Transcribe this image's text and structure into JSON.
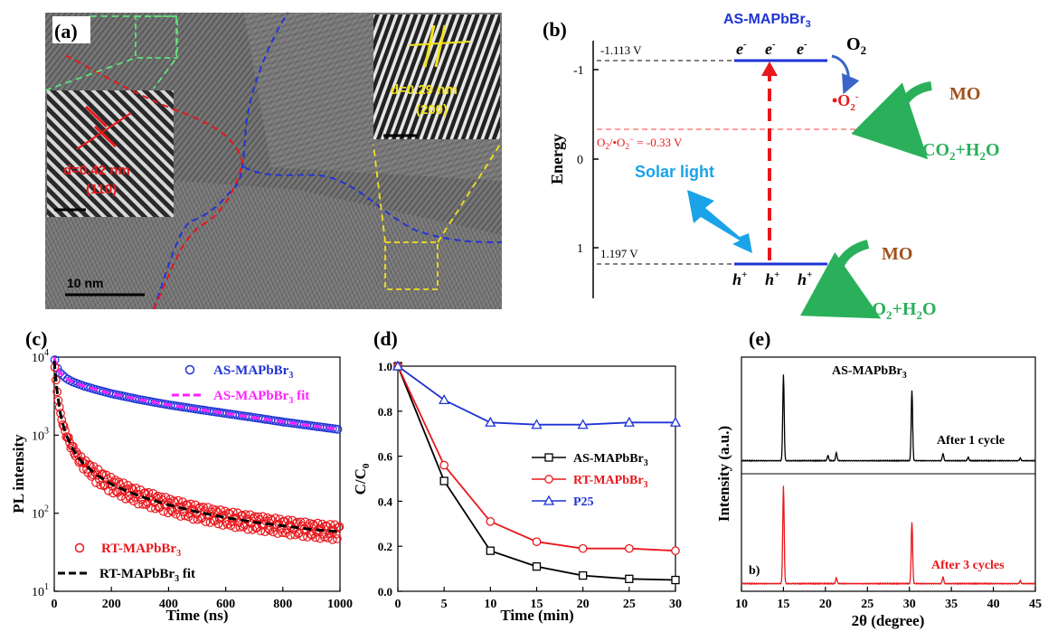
{
  "panel_labels": {
    "a": "(a)",
    "b": "(b)",
    "c": "(c)",
    "d": "(d)",
    "e": "(e)"
  },
  "colors": {
    "blue": "#1f33d6",
    "red": "#e8171c",
    "magenta": "#ff22ff",
    "black": "#000000",
    "green": "#2ab05a",
    "brown": "#a0521a",
    "yellow": "#f2e21d",
    "sky": "#1aa3e8",
    "pink": "#ff4040",
    "tem_green": "#5fe07a"
  },
  "tem": {
    "scale_bar": "10 nm",
    "left_inset": {
      "d": "d=0.42 nm",
      "plane": "(110)"
    },
    "right_inset": {
      "d": "d=0.29 nm",
      "plane": "(200)"
    }
  },
  "energy": {
    "title_main": "AS-MAPbBr",
    "title_sub": "3",
    "ylabel": "Energy",
    "ticks": [
      "-1",
      "0",
      "1"
    ],
    "cb_value": "-1.113 V",
    "vb_value": "1.197 V",
    "redox_pre": "O",
    "redox_s1": "2",
    "redox_mid": "/•O",
    "redox_s2": "2",
    "redox_sup": "−",
    "redox_post": " = -0.33 V",
    "electron": "e",
    "electron_sup": "-",
    "hole": "h",
    "hole_sup": "+",
    "o2_main": "O",
    "o2_sub": "2",
    "superoxide_main": "•O",
    "superoxide_sub": "2",
    "superoxide_sup": "-",
    "mo": "MO",
    "product_a": "CO",
    "product_b": "2",
    "product_c": "+H",
    "product_d": "2",
    "product_e": "O",
    "solar": "Solar light"
  },
  "chart_data": [
    {
      "type": "scatter",
      "panel": "c",
      "xlabel": "Time (ns)",
      "ylabel": "PL intensity",
      "yscale": "log",
      "xlim": [
        0,
        1000
      ],
      "ylim": [
        10,
        10000
      ],
      "xticks": [
        0,
        200,
        400,
        600,
        800,
        1000
      ],
      "yticks": [
        {
          "v": 10,
          "m": "10",
          "e": "1"
        },
        {
          "v": 100,
          "m": "10",
          "e": "2"
        },
        {
          "v": 1000,
          "m": "10",
          "e": "3"
        },
        {
          "v": 10000,
          "m": "10",
          "e": "4"
        }
      ],
      "series": [
        {
          "name": "AS-MAPbBr3",
          "legend_main": "AS-MAPbBr",
          "legend_sub": "3",
          "legend_post": "",
          "style": "circle",
          "color": "#1f33d6",
          "x": [
            0,
            5,
            10,
            20,
            40,
            60,
            100,
            150,
            200,
            300,
            400,
            500,
            600,
            700,
            800,
            900,
            1000
          ],
          "y": [
            10000,
            8200,
            7300,
            6300,
            5400,
            4900,
            4300,
            3800,
            3400,
            2850,
            2450,
            2150,
            1900,
            1680,
            1480,
            1320,
            1180
          ]
        },
        {
          "name": "AS-MAPbBr3 fit",
          "legend_main": "AS-MAPbBr",
          "legend_sub": "3",
          "legend_post": " fit",
          "style": "dash",
          "color": "#ff22ff",
          "x": [
            0,
            5,
            10,
            20,
            40,
            60,
            100,
            150,
            200,
            300,
            400,
            500,
            600,
            700,
            800,
            900,
            1000
          ],
          "y": [
            10000,
            8200,
            7300,
            6300,
            5400,
            4900,
            4300,
            3800,
            3400,
            2850,
            2450,
            2150,
            1900,
            1680,
            1480,
            1320,
            1180
          ]
        },
        {
          "name": "RT-MAPbBr3",
          "legend_main": "RT-MAPbBr",
          "legend_sub": "3",
          "legend_post": "",
          "style": "circle",
          "color": "#e8171c",
          "x": [
            0,
            5,
            10,
            20,
            30,
            40,
            60,
            80,
            100,
            150,
            200,
            250,
            300,
            400,
            500,
            600,
            700,
            800,
            900,
            1000
          ],
          "y": [
            9000,
            5500,
            3600,
            2000,
            1400,
            1050,
            720,
            540,
            440,
            305,
            235,
            195,
            165,
            128,
            104,
            88,
            77,
            69,
            62,
            58
          ]
        },
        {
          "name": "RT-MAPbBr3 fit",
          "legend_main": "RT-MAPbBr",
          "legend_sub": "3",
          "legend_post": " fit",
          "style": "dash",
          "color": "#000000",
          "x": [
            0,
            5,
            10,
            20,
            30,
            40,
            60,
            80,
            100,
            150,
            200,
            250,
            300,
            400,
            500,
            600,
            700,
            800,
            900,
            1000
          ],
          "y": [
            9000,
            5500,
            3600,
            2000,
            1400,
            1050,
            720,
            540,
            440,
            305,
            235,
            195,
            165,
            128,
            104,
            88,
            77,
            69,
            62,
            58
          ]
        }
      ]
    },
    {
      "type": "line",
      "panel": "d",
      "xlabel": "Time (min)",
      "ylabel_main": "C/C",
      "ylabel_sub": "0",
      "xlim": [
        0,
        30
      ],
      "ylim": [
        0,
        1.0
      ],
      "xticks": [
        0,
        5,
        10,
        15,
        20,
        25,
        30
      ],
      "yticks": [
        0.0,
        0.2,
        0.4,
        0.6,
        0.8,
        1.0
      ],
      "x": [
        0,
        5,
        10,
        15,
        20,
        25,
        30
      ],
      "series": [
        {
          "name": "AS-MAPbBr3",
          "legend_main": "AS-MAPbBr",
          "legend_sub": "3",
          "marker": "square",
          "color": "#000000",
          "values": [
            1.0,
            0.49,
            0.18,
            0.11,
            0.07,
            0.055,
            0.05
          ]
        },
        {
          "name": "RT-MAPbBr3",
          "legend_main": "RT-MAPbBr",
          "legend_sub": "3",
          "marker": "circle",
          "color": "#e8171c",
          "values": [
            1.0,
            0.56,
            0.31,
            0.22,
            0.19,
            0.19,
            0.18
          ]
        },
        {
          "name": "P25",
          "legend_main": "P25",
          "legend_sub": "",
          "marker": "triangle",
          "color": "#1f33d6",
          "values": [
            1.0,
            0.85,
            0.75,
            0.74,
            0.74,
            0.75,
            0.75
          ]
        }
      ]
    },
    {
      "type": "line",
      "panel": "e",
      "title_main": "AS-MAPbBr",
      "title_sub": "3",
      "xlabel": "2θ (degree)",
      "ylabel": "Intensity (a.u.)",
      "xlim": [
        10,
        45
      ],
      "xticks": [
        10,
        15,
        20,
        25,
        30,
        35,
        40,
        45
      ],
      "corner_label": "b)",
      "series": [
        {
          "name": "After 1 cycle",
          "color": "#000000",
          "peaks": [
            {
              "x": 15.0,
              "h": 0.95
            },
            {
              "x": 20.3,
              "h": 0.06
            },
            {
              "x": 21.3,
              "h": 0.09
            },
            {
              "x": 30.3,
              "h": 0.78
            },
            {
              "x": 34.0,
              "h": 0.08
            },
            {
              "x": 37.0,
              "h": 0.04
            },
            {
              "x": 43.2,
              "h": 0.03
            }
          ]
        },
        {
          "name": "After 3 cycles",
          "color": "#e8171c",
          "peaks": [
            {
              "x": 15.0,
              "h": 0.98
            },
            {
              "x": 21.3,
              "h": 0.06
            },
            {
              "x": 30.3,
              "h": 0.62
            },
            {
              "x": 34.0,
              "h": 0.07
            },
            {
              "x": 43.2,
              "h": 0.03
            }
          ]
        }
      ]
    }
  ]
}
